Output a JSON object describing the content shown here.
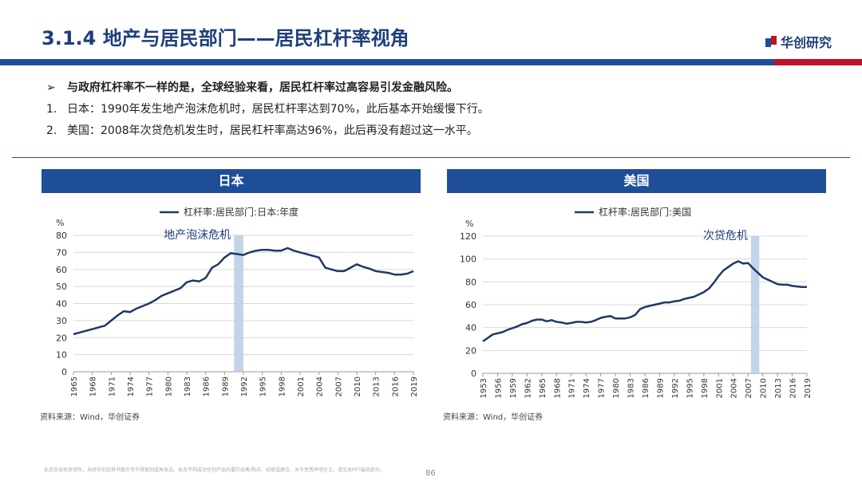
{
  "header": {
    "title": "3.1.4 地产与居民部门——居民杠杆率视角",
    "logo_text": "华创研究",
    "brand_color": "#1f4e99",
    "accent_color": "#c0122b"
  },
  "bullets": [
    {
      "marker": "➢",
      "text": "与政府杠杆率不一样的是，全球经验来看，居民杠杆率过高容易引发金融风险。"
    },
    {
      "marker": "1.",
      "text": "日本：1990年发生地产泡沫危机时，居民杠杆率达到70%，此后基本开始缓慢下行。"
    },
    {
      "marker": "2.",
      "text": "美国：2008年次贷危机发生时，居民杠杆率高达96%，此后再没有超过这一水平。"
    }
  ],
  "panels": [
    {
      "heading": "日本",
      "source": "资料来源：Wind，华创证券"
    },
    {
      "heading": "美国",
      "source": "资料来源：Wind，华创证券"
    }
  ],
  "footer": {
    "note": "此页包含机密资料，未经华创证券书面许可不得复制或再发送。本页不构成对任何产品的要约出售/购买、招揽或建议。关于免责声明全文，请见本PPT最后部分。",
    "page": "86"
  },
  "chart_data": [
    {
      "type": "line",
      "ylabel": "%",
      "ylim": [
        0,
        80
      ],
      "yticks": [
        0,
        10,
        20,
        30,
        40,
        50,
        60,
        70,
        80
      ],
      "xticks": [
        "1965",
        "1968",
        "1971",
        "1974",
        "1977",
        "1980",
        "1983",
        "1986",
        "1989",
        "1992",
        "1995",
        "1998",
        "2001",
        "2004",
        "2007",
        "2010",
        "2013",
        "2016",
        "2019"
      ],
      "xlim": [
        1965,
        2019
      ],
      "legend": "top-center",
      "grid": "horizontal",
      "line_color": "#1f3864",
      "band_color": "#b8cce4",
      "series": [
        {
          "name": "杠杆率:居民部门:日本:年度",
          "x": [
            1965,
            1966,
            1967,
            1968,
            1969,
            1970,
            1971,
            1972,
            1973,
            1974,
            1975,
            1976,
            1977,
            1978,
            1979,
            1980,
            1981,
            1982,
            1983,
            1984,
            1985,
            1986,
            1987,
            1988,
            1989,
            1990,
            1991,
            1992,
            1993,
            1994,
            1995,
            1996,
            1997,
            1998,
            1999,
            2000,
            2001,
            2002,
            2003,
            2004,
            2005,
            2006,
            2007,
            2008,
            2009,
            2010,
            2011,
            2012,
            2013,
            2014,
            2015,
            2016,
            2017,
            2018,
            2019
          ],
          "values": [
            22,
            23,
            24,
            25,
            26,
            27,
            30,
            33,
            35.5,
            35,
            37,
            38.5,
            40,
            42,
            44.5,
            46,
            47.5,
            49,
            52.5,
            53.5,
            53,
            55,
            61,
            63,
            67,
            69.5,
            69,
            68.5,
            70,
            71,
            71.5,
            71.5,
            71,
            71,
            72.5,
            71,
            70,
            69,
            68,
            67,
            61,
            60,
            59,
            59,
            61,
            63,
            61.5,
            60.5,
            59,
            58.5,
            58,
            57,
            57,
            57.5,
            59
          ]
        }
      ],
      "annotations": [
        {
          "text": "地产泡沫危机",
          "band": [
            1990.5,
            1992
          ]
        }
      ]
    },
    {
      "type": "line",
      "ylabel": "%",
      "ylim": [
        0,
        120
      ],
      "yticks": [
        0,
        20,
        40,
        60,
        80,
        100,
        120
      ],
      "xticks": [
        "1953",
        "1956",
        "1959",
        "1962",
        "1965",
        "1968",
        "1971",
        "1974",
        "1977",
        "1980",
        "1983",
        "1986",
        "1989",
        "1992",
        "1995",
        "1998",
        "2001",
        "2004",
        "2007",
        "2010",
        "2013",
        "2016",
        "2019"
      ],
      "xlim": [
        1953,
        2019
      ],
      "legend": "top-center",
      "grid": "horizontal",
      "line_color": "#1f3864",
      "band_color": "#b8cce4",
      "series": [
        {
          "name": "杠杆率:居民部门:美国",
          "x": [
            1953,
            1954,
            1955,
            1956,
            1957,
            1958,
            1959,
            1960,
            1961,
            1962,
            1963,
            1964,
            1965,
            1966,
            1967,
            1968,
            1969,
            1970,
            1971,
            1972,
            1973,
            1974,
            1975,
            1976,
            1977,
            1978,
            1979,
            1980,
            1981,
            1982,
            1983,
            1984,
            1985,
            1986,
            1987,
            1988,
            1989,
            1990,
            1991,
            1992,
            1993,
            1994,
            1995,
            1996,
            1997,
            1998,
            1999,
            2000,
            2001,
            2002,
            2003,
            2004,
            2005,
            2006,
            2007,
            2008,
            2009,
            2010,
            2011,
            2012,
            2013,
            2014,
            2015,
            2016,
            2017,
            2018,
            2019
          ],
          "values": [
            28,
            31,
            34,
            35,
            36,
            38,
            39.5,
            41,
            43,
            44,
            46,
            47,
            47,
            45.5,
            46.5,
            45,
            44.5,
            43.5,
            44,
            45,
            45,
            44.5,
            45,
            46.5,
            48.5,
            49.5,
            50,
            48,
            48,
            48,
            49,
            51,
            56,
            58,
            59,
            60,
            61,
            62,
            62,
            63,
            63.5,
            65,
            66,
            67,
            69,
            71,
            74,
            79,
            85,
            90,
            93,
            96,
            98,
            96,
            96.5,
            92,
            88,
            84,
            82,
            80,
            78,
            77.5,
            77.5,
            76.5,
            76,
            75.5,
            75.5
          ]
        }
      ],
      "annotations": [
        {
          "text": "次贷危机",
          "band": [
            2007.6,
            2009.3
          ]
        }
      ]
    }
  ]
}
